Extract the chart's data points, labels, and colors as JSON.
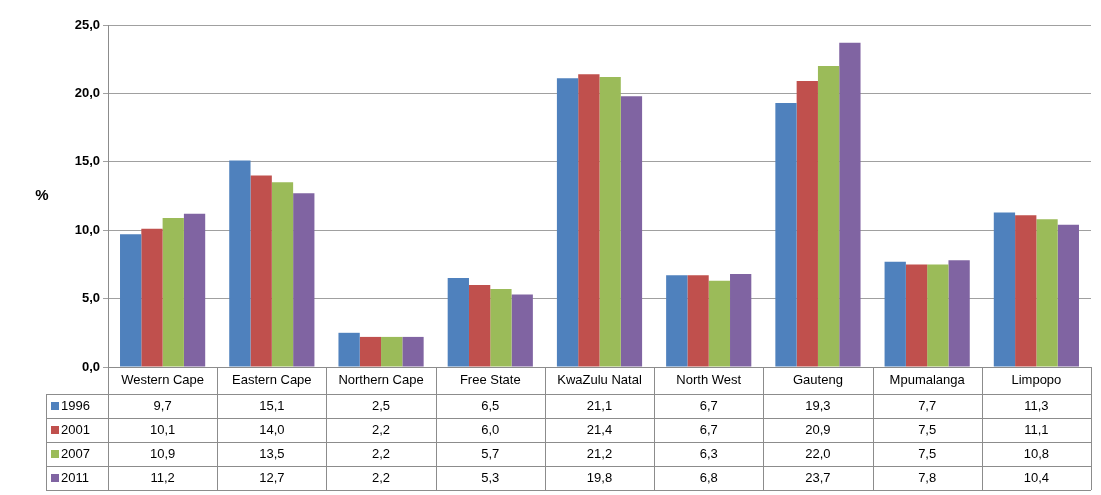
{
  "chart_data": {
    "type": "bar",
    "ylabel": "%",
    "categories": [
      "Western Cape",
      "Eastern Cape",
      "Northern Cape",
      "Free State",
      "KwaZulu Natal",
      "North West",
      "Gauteng",
      "Mpumalanga",
      "Limpopo"
    ],
    "series": [
      {
        "name": "1996",
        "color": "#4f81bd",
        "values": [
          9.7,
          15.1,
          2.5,
          6.5,
          21.1,
          6.7,
          19.3,
          7.7,
          11.3
        ],
        "value_labels": [
          "9,7",
          "15,1",
          "2,5",
          "6,5",
          "21,1",
          "6,7",
          "19,3",
          "7,7",
          "11,3"
        ]
      },
      {
        "name": "2001",
        "color": "#c0504d",
        "values": [
          10.1,
          14.0,
          2.2,
          6.0,
          21.4,
          6.7,
          20.9,
          7.5,
          11.1
        ],
        "value_labels": [
          "10,1",
          "14,0",
          "2,2",
          "6,0",
          "21,4",
          "6,7",
          "20,9",
          "7,5",
          "11,1"
        ]
      },
      {
        "name": "2007",
        "color": "#9bbb59",
        "values": [
          10.9,
          13.5,
          2.2,
          5.7,
          21.2,
          6.3,
          22.0,
          7.5,
          10.8
        ],
        "value_labels": [
          "10,9",
          "13,5",
          "2,2",
          "5,7",
          "21,2",
          "6,3",
          "22,0",
          "7,5",
          "10,8"
        ]
      },
      {
        "name": "2011",
        "color": "#8064a2",
        "values": [
          11.2,
          12.7,
          2.2,
          5.3,
          19.8,
          6.8,
          23.7,
          7.8,
          10.4
        ],
        "value_labels": [
          "11,2",
          "12,7",
          "2,2",
          "5,3",
          "19,8",
          "6,8",
          "23,7",
          "7,8",
          "10,4"
        ]
      }
    ],
    "ylim": [
      0,
      25
    ],
    "yticks": [
      {
        "value": 0,
        "label": "0,0"
      },
      {
        "value": 5,
        "label": "5,0"
      },
      {
        "value": 10,
        "label": "10,0"
      },
      {
        "value": 15,
        "label": "15,0"
      },
      {
        "value": 20,
        "label": "20,0"
      },
      {
        "value": 25,
        "label": "25,0"
      }
    ],
    "grid": "y",
    "legend": "bottom left"
  }
}
